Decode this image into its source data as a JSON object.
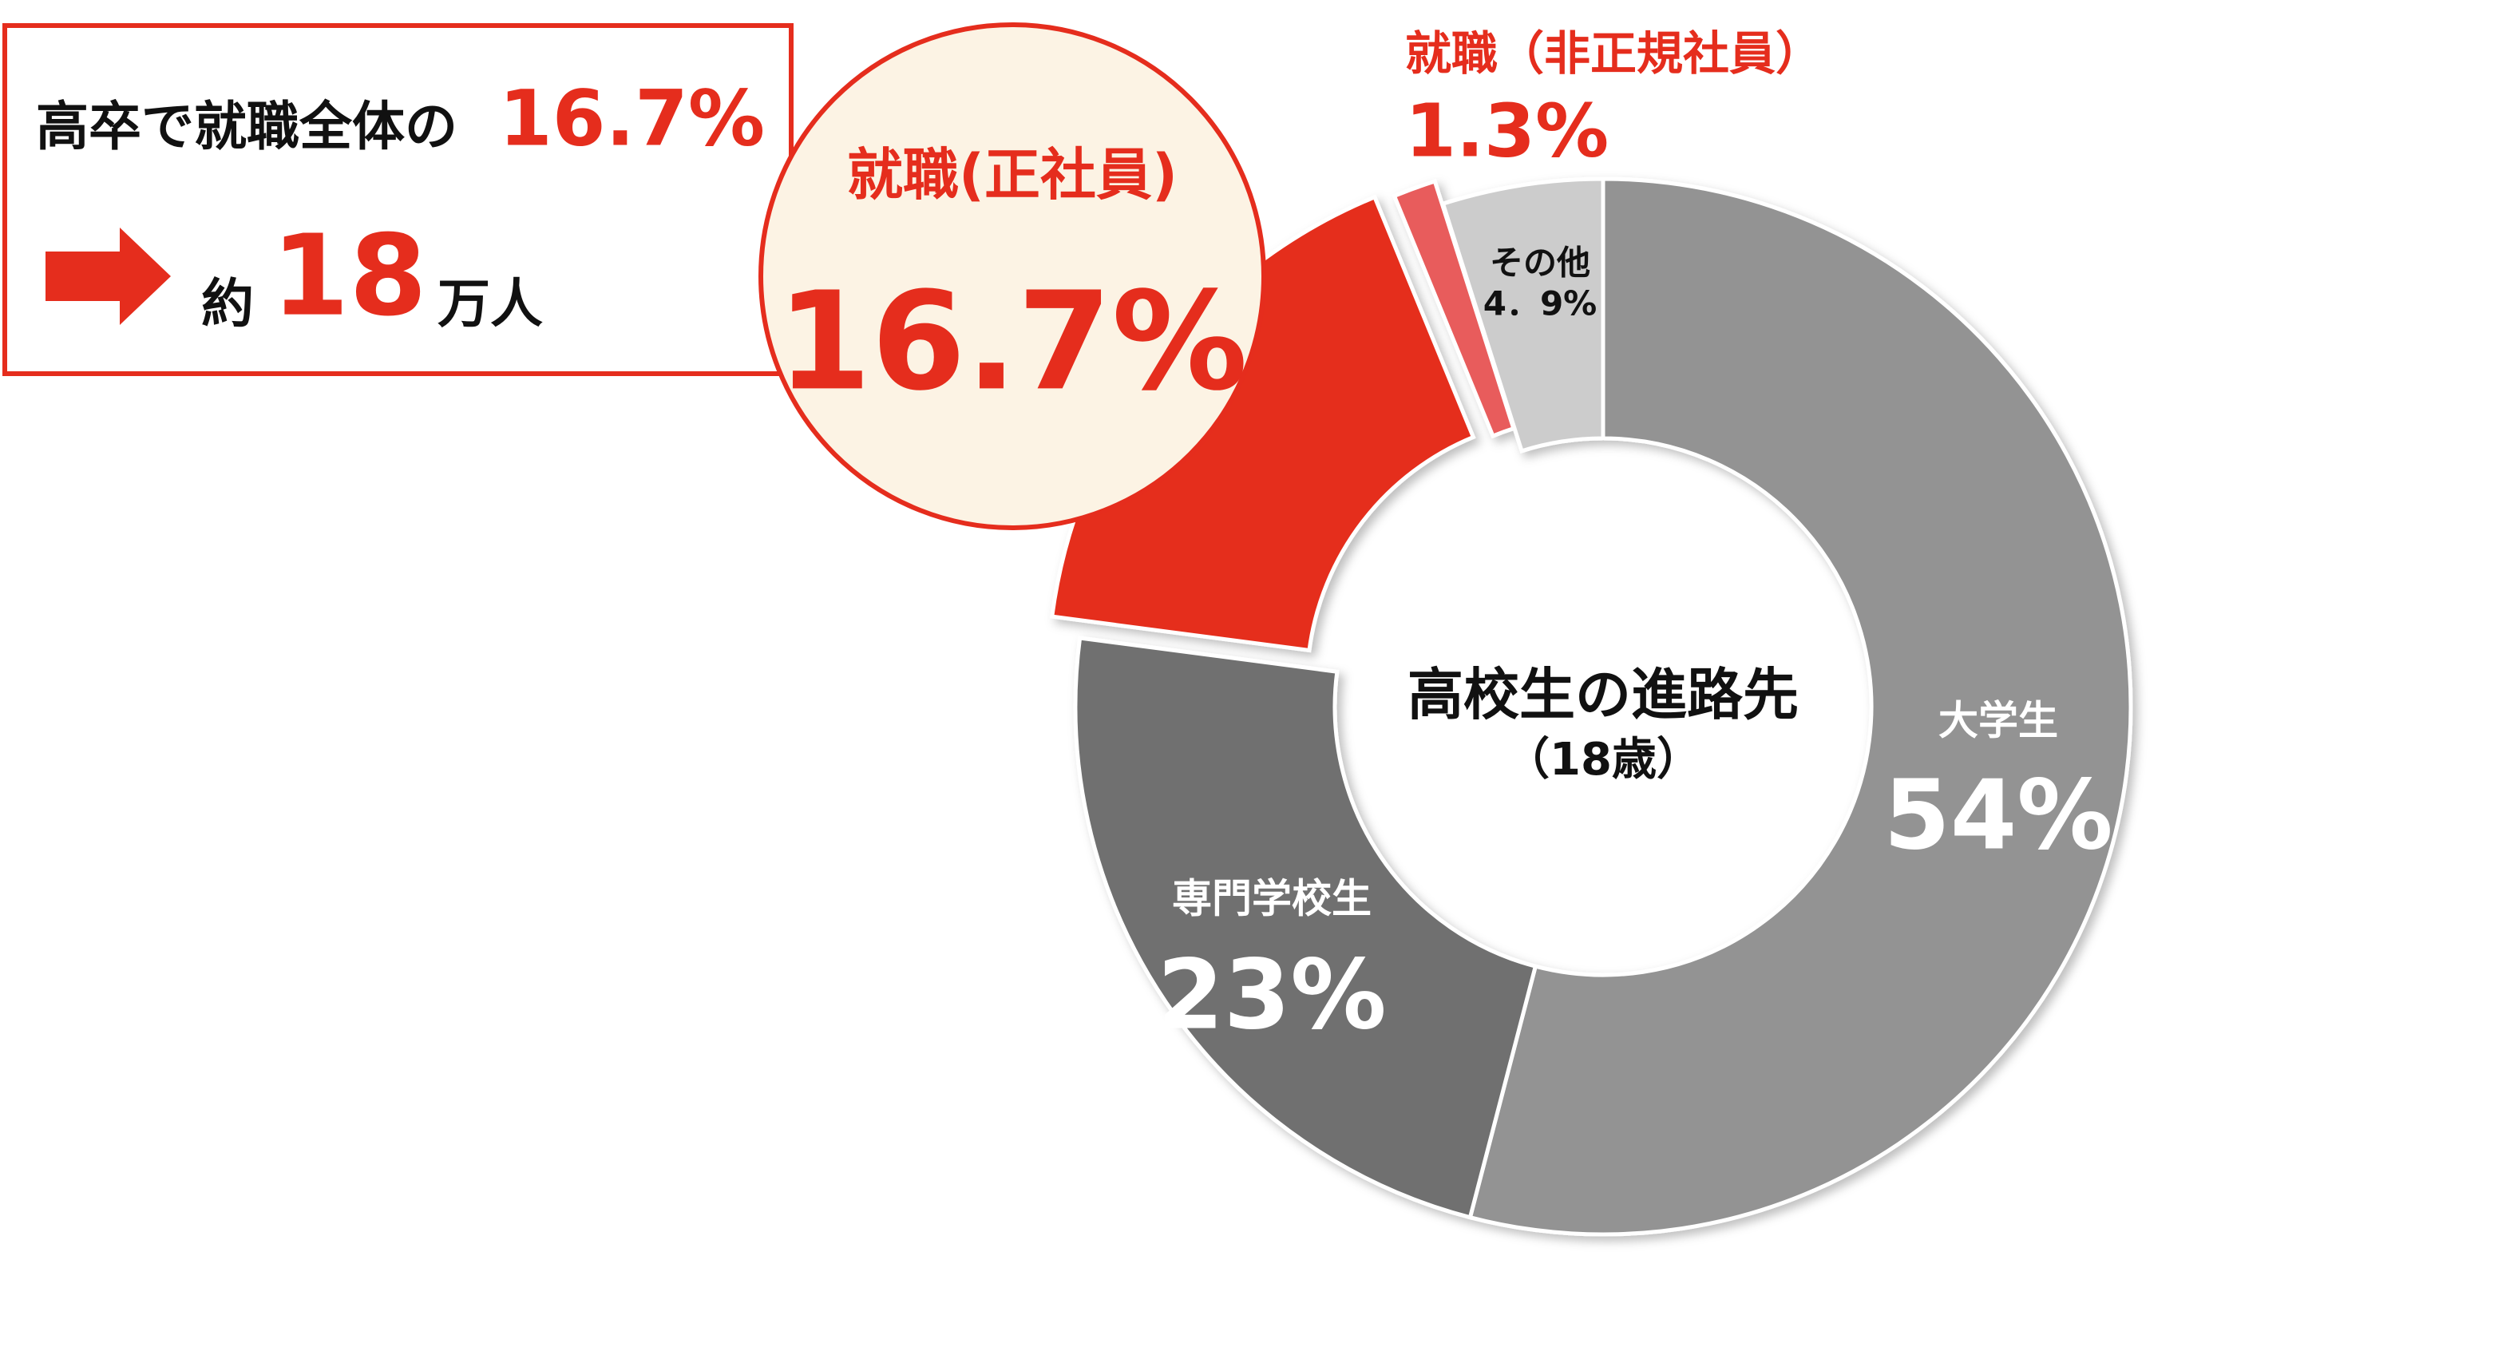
{
  "chart_data": {
    "type": "donut",
    "title": "高校生の進路先",
    "subtitle": "（18歳）",
    "categories": [
      "大学生",
      "専門学校生",
      "就職(正社員)",
      "就職（非正規社員）",
      "その他"
    ],
    "values": [
      54,
      23,
      16.7,
      1.3,
      4.9
    ],
    "value_labels": [
      "54%",
      "23%",
      "16.7%",
      "1.3%",
      "4．9%"
    ],
    "colors": [
      "#939393",
      "#6f706f",
      "#e52d1d",
      "#e85c5c",
      "#cccccc"
    ],
    "annotations": {
      "box_line1": "高卒で就職全体の",
      "box_line1_value": "16.7%",
      "box_line2_prefix": "約",
      "box_line2_value": "18",
      "box_line2_suffix": "万人"
    }
  }
}
